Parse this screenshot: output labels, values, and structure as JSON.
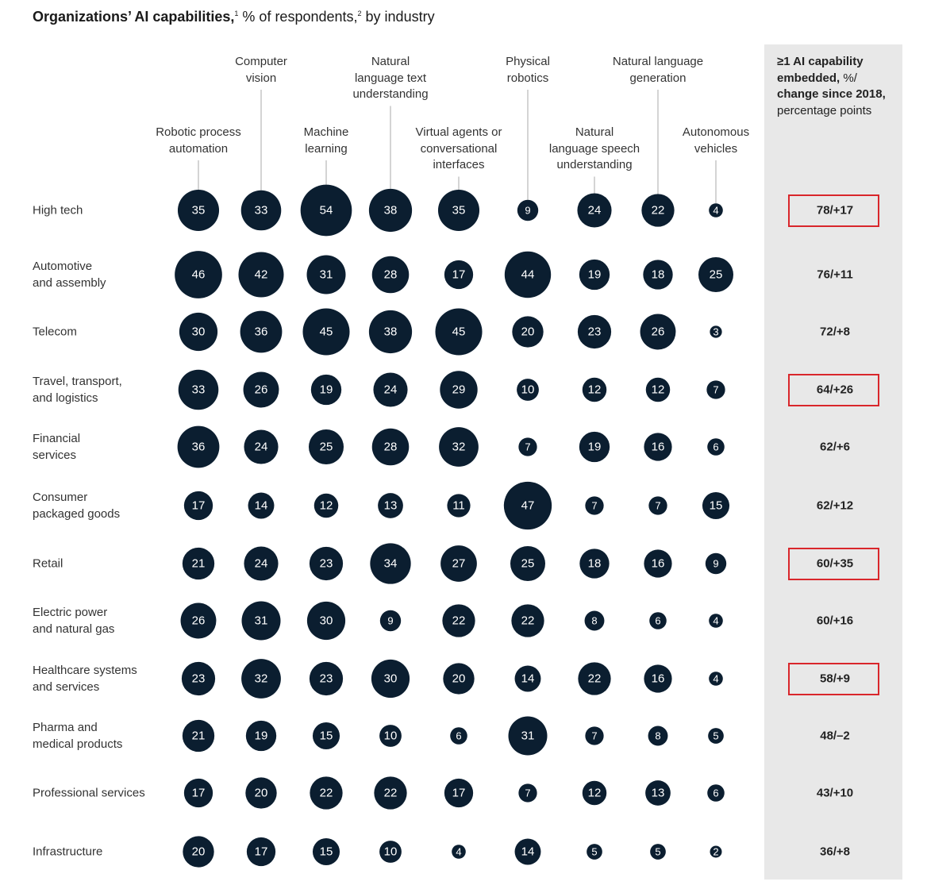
{
  "title": {
    "bold": "Organizations’ AI capabilities,",
    "sup1": "1",
    "rest": " % of respondents,",
    "sup2": "2",
    "tail": " by industry"
  },
  "summary_header": {
    "bold": "≥1 AI capability embedded,",
    "regular1": " %/",
    "bold2": "change since 2018,",
    "regular2": "percentage points"
  },
  "colors": {
    "bubble": "#0b1e30",
    "bubble_text": "#ffffff",
    "panel": "#e8e8e8",
    "highlight": "#d9262b",
    "connector": "#aaaaaa"
  },
  "chart_data": {
    "type": "bubble-matrix",
    "columns": [
      [
        "Robotic process",
        "automation"
      ],
      [
        "Computer",
        "vision"
      ],
      [
        "Machine",
        "learning"
      ],
      [
        "Natural",
        "language text",
        "understanding"
      ],
      [
        "Virtual agents or",
        "conversational",
        "interfaces"
      ],
      [
        "Physical",
        "robotics"
      ],
      [
        "Natural",
        "language speech",
        "understanding"
      ],
      [
        "Natural language",
        "generation"
      ],
      [
        "Autonomous",
        "vehicles"
      ]
    ],
    "rows": [
      {
        "label": [
          "High tech"
        ],
        "values": [
          35,
          33,
          54,
          38,
          35,
          9,
          24,
          22,
          4
        ],
        "summary": "78/+17",
        "highlighted": true
      },
      {
        "label": [
          "Automotive",
          "and assembly"
        ],
        "values": [
          46,
          42,
          31,
          28,
          17,
          44,
          19,
          18,
          25
        ],
        "summary": "76/+11",
        "highlighted": false
      },
      {
        "label": [
          "Telecom"
        ],
        "values": [
          30,
          36,
          45,
          38,
          45,
          20,
          23,
          26,
          3
        ],
        "summary": "72/+8",
        "highlighted": false
      },
      {
        "label": [
          "Travel, transport,",
          "and logistics"
        ],
        "values": [
          33,
          26,
          19,
          24,
          29,
          10,
          12,
          12,
          7
        ],
        "summary": "64/+26",
        "highlighted": true
      },
      {
        "label": [
          "Financial",
          "services"
        ],
        "values": [
          36,
          24,
          25,
          28,
          32,
          7,
          19,
          16,
          6
        ],
        "summary": "62/+6",
        "highlighted": false
      },
      {
        "label": [
          "Consumer",
          "packaged goods"
        ],
        "values": [
          17,
          14,
          12,
          13,
          11,
          47,
          7,
          7,
          15
        ],
        "summary": "62/+12",
        "highlighted": false
      },
      {
        "label": [
          "Retail"
        ],
        "values": [
          21,
          24,
          23,
          34,
          27,
          25,
          18,
          16,
          9
        ],
        "summary": "60/+35",
        "highlighted": true
      },
      {
        "label": [
          "Electric power",
          "and natural gas"
        ],
        "values": [
          26,
          31,
          30,
          9,
          22,
          22,
          8,
          6,
          4
        ],
        "summary": "60/+16",
        "highlighted": false
      },
      {
        "label": [
          "Healthcare systems",
          "and services"
        ],
        "values": [
          23,
          32,
          23,
          30,
          20,
          14,
          22,
          16,
          4
        ],
        "summary": "58/+9",
        "highlighted": true
      },
      {
        "label": [
          "Pharma and",
          "medical products"
        ],
        "values": [
          21,
          19,
          15,
          10,
          6,
          31,
          7,
          8,
          5
        ],
        "summary": "48/–2",
        "highlighted": false
      },
      {
        "label": [
          "Professional services"
        ],
        "values": [
          17,
          20,
          22,
          22,
          17,
          7,
          12,
          13,
          6
        ],
        "summary": "43/+10",
        "highlighted": false
      },
      {
        "label": [
          "Infrastructure"
        ],
        "values": [
          20,
          17,
          15,
          10,
          4,
          14,
          5,
          5,
          2
        ],
        "summary": "36/+8",
        "highlighted": false
      }
    ]
  }
}
